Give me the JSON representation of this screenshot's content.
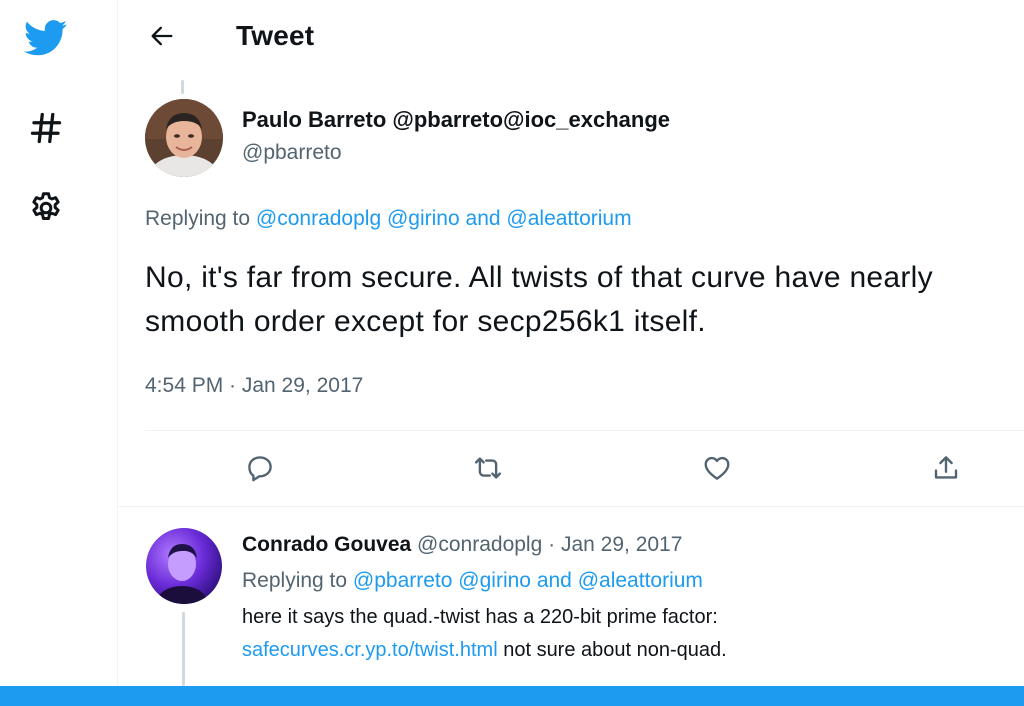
{
  "header": {
    "title": "Tweet"
  },
  "icons": {
    "logo": "twitter-bird-icon",
    "explore": "hashtag-icon",
    "settings": "gear-icon",
    "back": "back-arrow-icon",
    "reply": "reply-bubble-icon",
    "retweet": "retweet-icon",
    "like": "heart-icon",
    "share": "share-icon"
  },
  "colors": {
    "accent": "#1d9bf0",
    "muted": "#536471",
    "text": "#0f1419"
  },
  "main_tweet": {
    "author_name": "Paulo Barreto @pbarreto@ioc_exchange",
    "author_handle": "@pbarreto",
    "replying_prefix": "Replying to",
    "mention_1": "@conradoplg",
    "mention_2": "@girino",
    "mention_and": "and",
    "mention_3": "@aleattorium",
    "text": "No, it's far from secure. All twists of that curve have nearly smooth order except for secp256k1 itself.",
    "timestamp": "4:54 PM · Jan 29, 2017"
  },
  "reply_tweet": {
    "author_name": "Conrado Gouvea",
    "author_handle": "@conradoplg",
    "separator": "·",
    "date": "Jan 29, 2017",
    "replying_prefix": "Replying to",
    "mention_1": "@pbarreto",
    "mention_2": "@girino",
    "mention_and": "and",
    "mention_3": "@aleattorium",
    "text_line_1": "here it says the quad.-twist has a 220-bit prime factor:",
    "link": "safecurves.cr.yp.to/twist.html",
    "text_after_link": "not sure about non-quad."
  }
}
